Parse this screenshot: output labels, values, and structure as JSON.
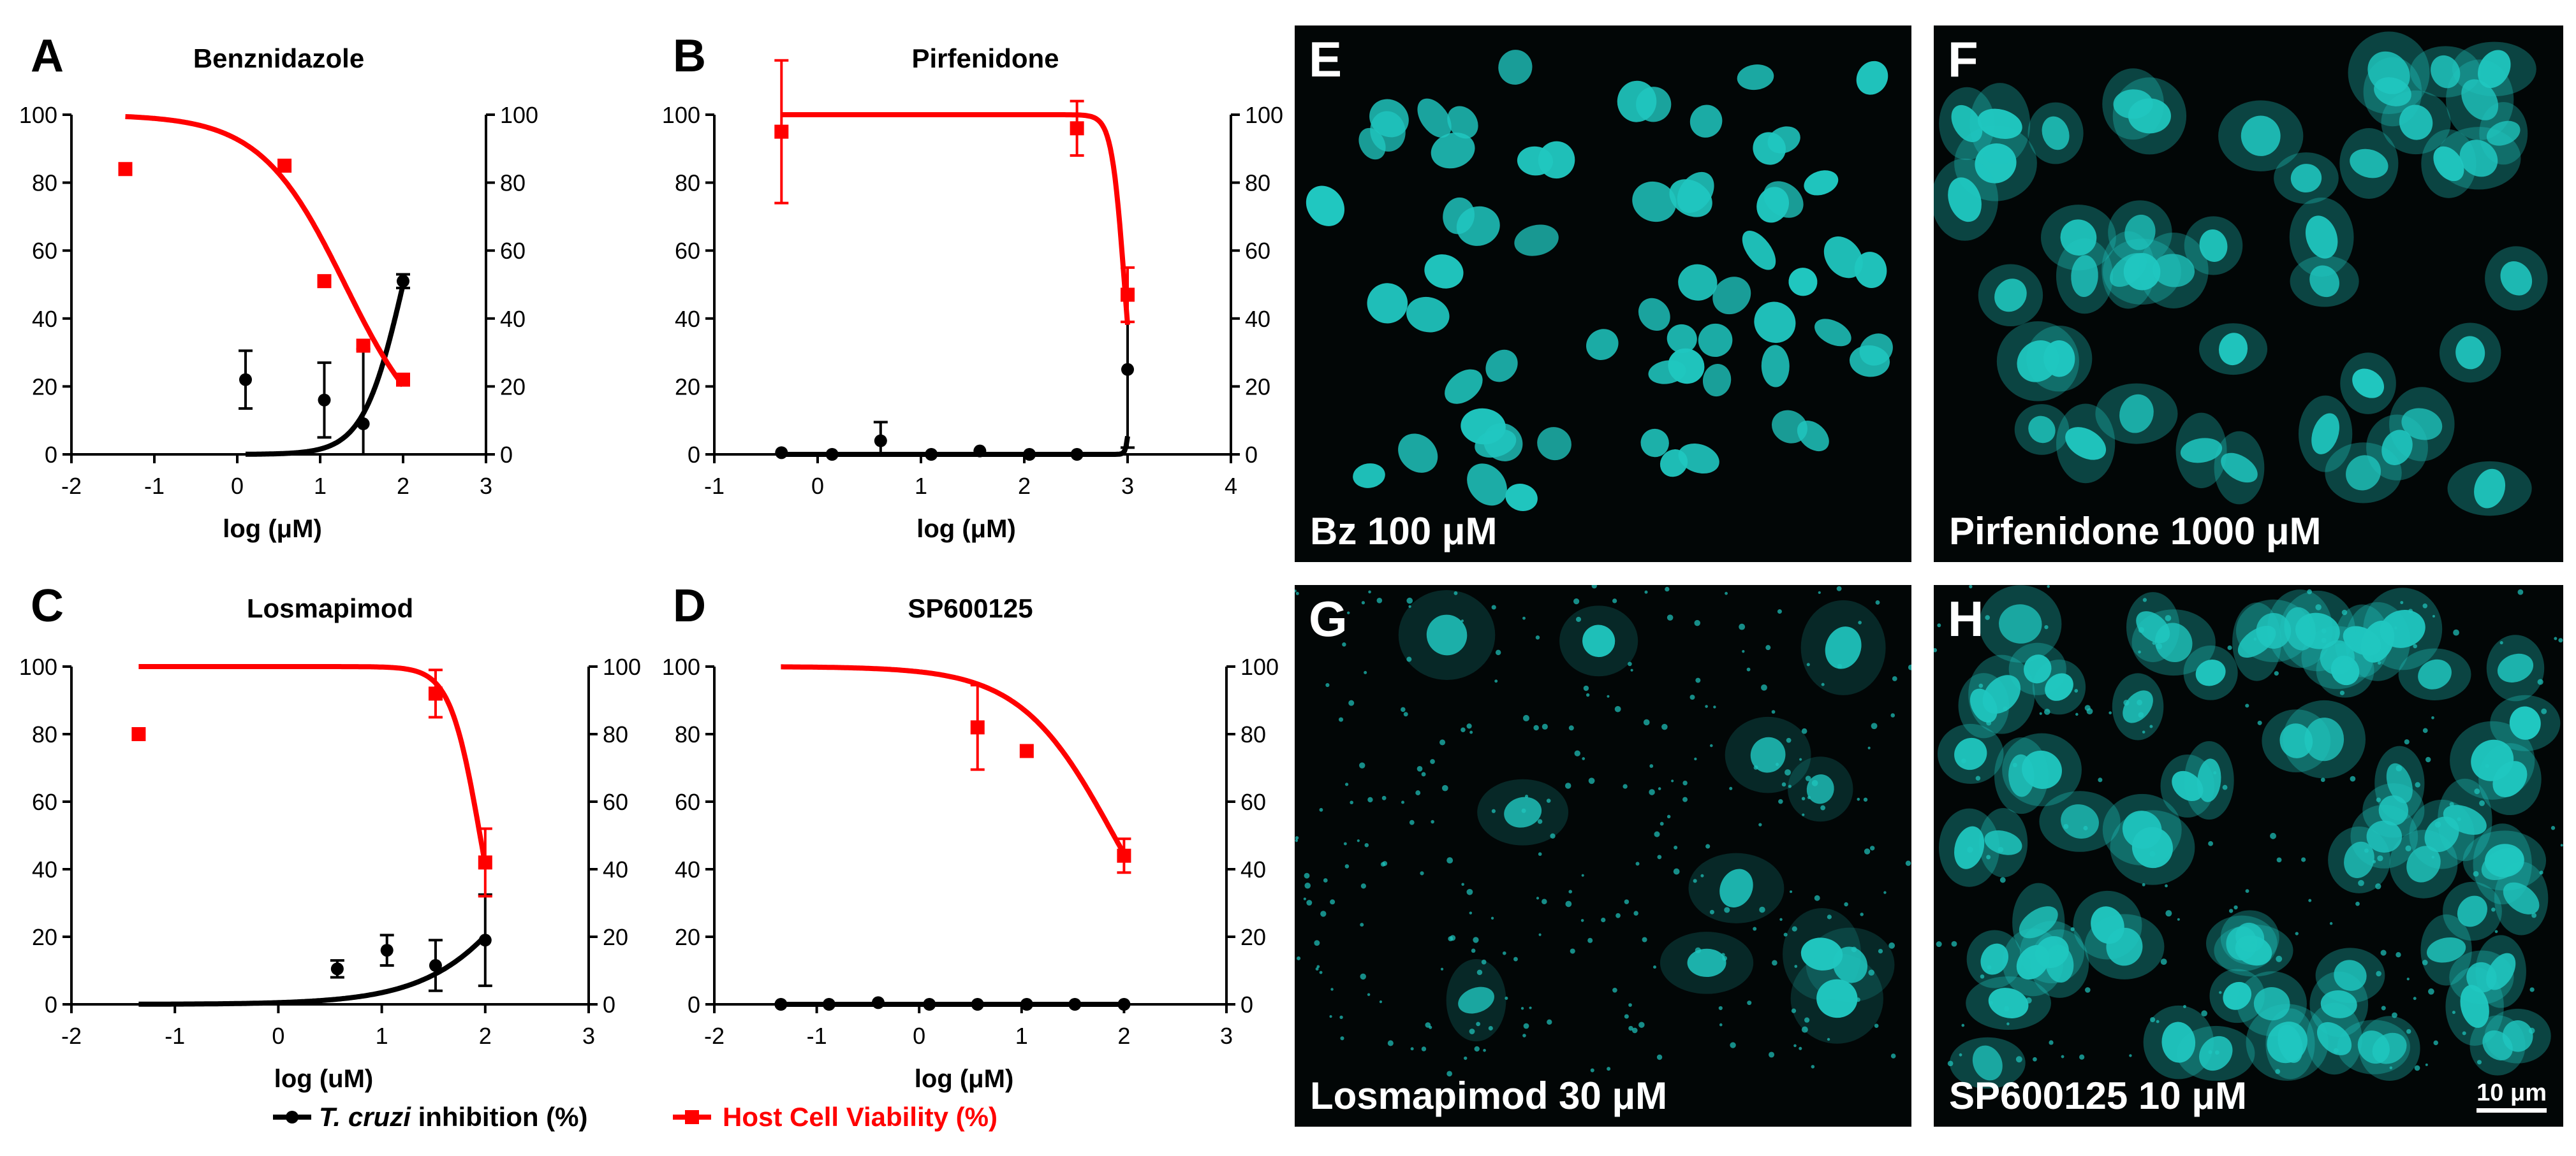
{
  "chart_data": [
    {
      "panel": "A",
      "title": "Benznidazole",
      "type": "scatter",
      "xlabel": "log (μM)",
      "xlim": [
        -2,
        3
      ],
      "xticks": [
        -2,
        -1,
        0,
        1,
        2,
        3
      ],
      "ylim": [
        0,
        100
      ],
      "yticks": [
        0,
        20,
        40,
        60,
        80,
        100
      ],
      "series": [
        {
          "name": "T. cruzi inhibition (%)",
          "color": "#000000",
          "marker": "circle",
          "x": [
            0.1,
            1.05,
            1.52,
            2.0
          ],
          "y": [
            22,
            16,
            9,
            51
          ],
          "err": [
            8.5,
            11,
            22,
            2
          ],
          "fit": {
            "min": 0,
            "max": 100,
            "ec50": 2.0,
            "hill": 1.8,
            "from": 0.1,
            "to": 2.02
          }
        },
        {
          "name": "Host Cell Viability (%)",
          "color": "#ff0000",
          "marker": "square",
          "x": [
            -1.35,
            0.57,
            1.05,
            1.52,
            2.0
          ],
          "y": [
            84,
            85,
            51,
            32,
            22
          ],
          "err": [
            0,
            0,
            0,
            0,
            0
          ],
          "fit": {
            "min": 0,
            "max": 100,
            "ec50": 1.3,
            "hill": 0.85,
            "from": -1.35,
            "to": 2.0
          }
        }
      ]
    },
    {
      "panel": "B",
      "title": "Pirfenidone",
      "type": "scatter",
      "xlabel": "log (μM)",
      "xlim": [
        -1,
        4
      ],
      "xticks": [
        -1,
        0,
        1,
        2,
        3,
        4
      ],
      "ylim": [
        0,
        100
      ],
      "yticks": [
        0,
        20,
        40,
        60,
        80,
        100
      ],
      "series": [
        {
          "name": "T. cruzi inhibition (%)",
          "color": "#000000",
          "marker": "circle",
          "x": [
            -0.35,
            0.14,
            0.61,
            1.1,
            1.57,
            2.05,
            2.51,
            3.0
          ],
          "y": [
            0.5,
            0,
            4,
            0,
            1,
            0,
            0,
            25
          ],
          "err": [
            0,
            0,
            5.5,
            0,
            0,
            0,
            0,
            23
          ],
          "fit": {
            "min": 0,
            "max": 100,
            "ec50": 3.05,
            "hill": 25,
            "from": -0.35,
            "to": 3.0
          }
        },
        {
          "name": "Host Cell Viability (%)",
          "color": "#ff0000",
          "marker": "square",
          "x": [
            -0.35,
            2.51,
            3.0
          ],
          "y": [
            95,
            96,
            47
          ],
          "err": [
            21,
            8,
            8
          ],
          "fit": {
            "min": 0,
            "max": 100,
            "ec50": 2.97,
            "hill": 7,
            "from": -0.35,
            "to": 3.0
          }
        }
      ]
    },
    {
      "panel": "C",
      "title": "Losmapimod",
      "type": "scatter",
      "xlabel": "log (uM)",
      "xlim": [
        -2,
        3
      ],
      "xticks": [
        -2,
        -1,
        0,
        1,
        2,
        3
      ],
      "ylim": [
        0,
        100
      ],
      "yticks": [
        0,
        20,
        40,
        60,
        80,
        100
      ],
      "series": [
        {
          "name": "T. cruzi inhibition (%)",
          "color": "#000000",
          "marker": "circle",
          "x": [
            0.57,
            1.05,
            1.52,
            2.0
          ],
          "y": [
            10.5,
            16,
            11.5,
            19
          ],
          "err": [
            2.5,
            4.5,
            7.5,
            13.5
          ],
          "fit": {
            "min": 0,
            "max": 100,
            "ec50": 2.7,
            "hill": 0.85,
            "from": -1.35,
            "to": 2.0
          }
        },
        {
          "name": "Host Cell Viability (%)",
          "color": "#ff0000",
          "marker": "square",
          "x": [
            -1.35,
            1.52,
            2.0
          ],
          "y": [
            80,
            92,
            42
          ],
          "err": [
            0,
            7,
            10
          ],
          "fit": {
            "min": 0,
            "max": 100,
            "ec50": 1.95,
            "hill": 3,
            "from": -1.35,
            "to": 2.0
          }
        }
      ]
    },
    {
      "panel": "D",
      "title": "SP600125",
      "type": "scatter",
      "xlabel": "log (μM)",
      "xlim": [
        -2,
        3
      ],
      "xticks": [
        -2,
        -1,
        0,
        1,
        2,
        3
      ],
      "ylim": [
        0,
        100
      ],
      "yticks": [
        0,
        20,
        40,
        60,
        80,
        100
      ],
      "series": [
        {
          "name": "T. cruzi inhibition (%)",
          "color": "#000000",
          "marker": "circle",
          "x": [
            -1.35,
            -0.88,
            -0.4,
            0.1,
            0.57,
            1.05,
            1.52,
            2.0
          ],
          "y": [
            0,
            0,
            0.5,
            0,
            0,
            0,
            0,
            0
          ],
          "err": [
            0,
            0,
            0,
            0,
            0,
            0,
            0,
            0
          ],
          "fit": {
            "min": 0,
            "max": 100,
            "ec50": 50,
            "hill": 1,
            "from": -1.35,
            "to": 2.0
          }
        },
        {
          "name": "Host Cell Viability (%)",
          "color": "#ff0000",
          "marker": "square",
          "x": [
            0.57,
            1.05,
            2.0
          ],
          "y": [
            82,
            75,
            44
          ],
          "err": [
            12.5,
            0,
            5
          ],
          "fit": {
            "min": 0,
            "max": 100,
            "ec50": 1.9,
            "hill": 0.95,
            "from": -1.35,
            "to": 2.0
          }
        }
      ]
    }
  ],
  "legend": {
    "italic_part": "T. cruzi",
    "inhibition_part": " inhibition (%)",
    "viability": "Host Cell Viability (%)"
  },
  "micrographs": [
    {
      "letter": "E",
      "caption": "Bz 100 μM"
    },
    {
      "letter": "F",
      "caption": "Pirfenidone 1000 μM"
    },
    {
      "letter": "G",
      "caption": "Losmapimod 30 μM"
    },
    {
      "letter": "H",
      "caption": "SP600125 10 μM",
      "scale": "10 μm"
    }
  ],
  "colors": {
    "inhibition": "#000000",
    "viability": "#ff0000",
    "nucleus": "#20c7c0",
    "background": "#020606"
  }
}
